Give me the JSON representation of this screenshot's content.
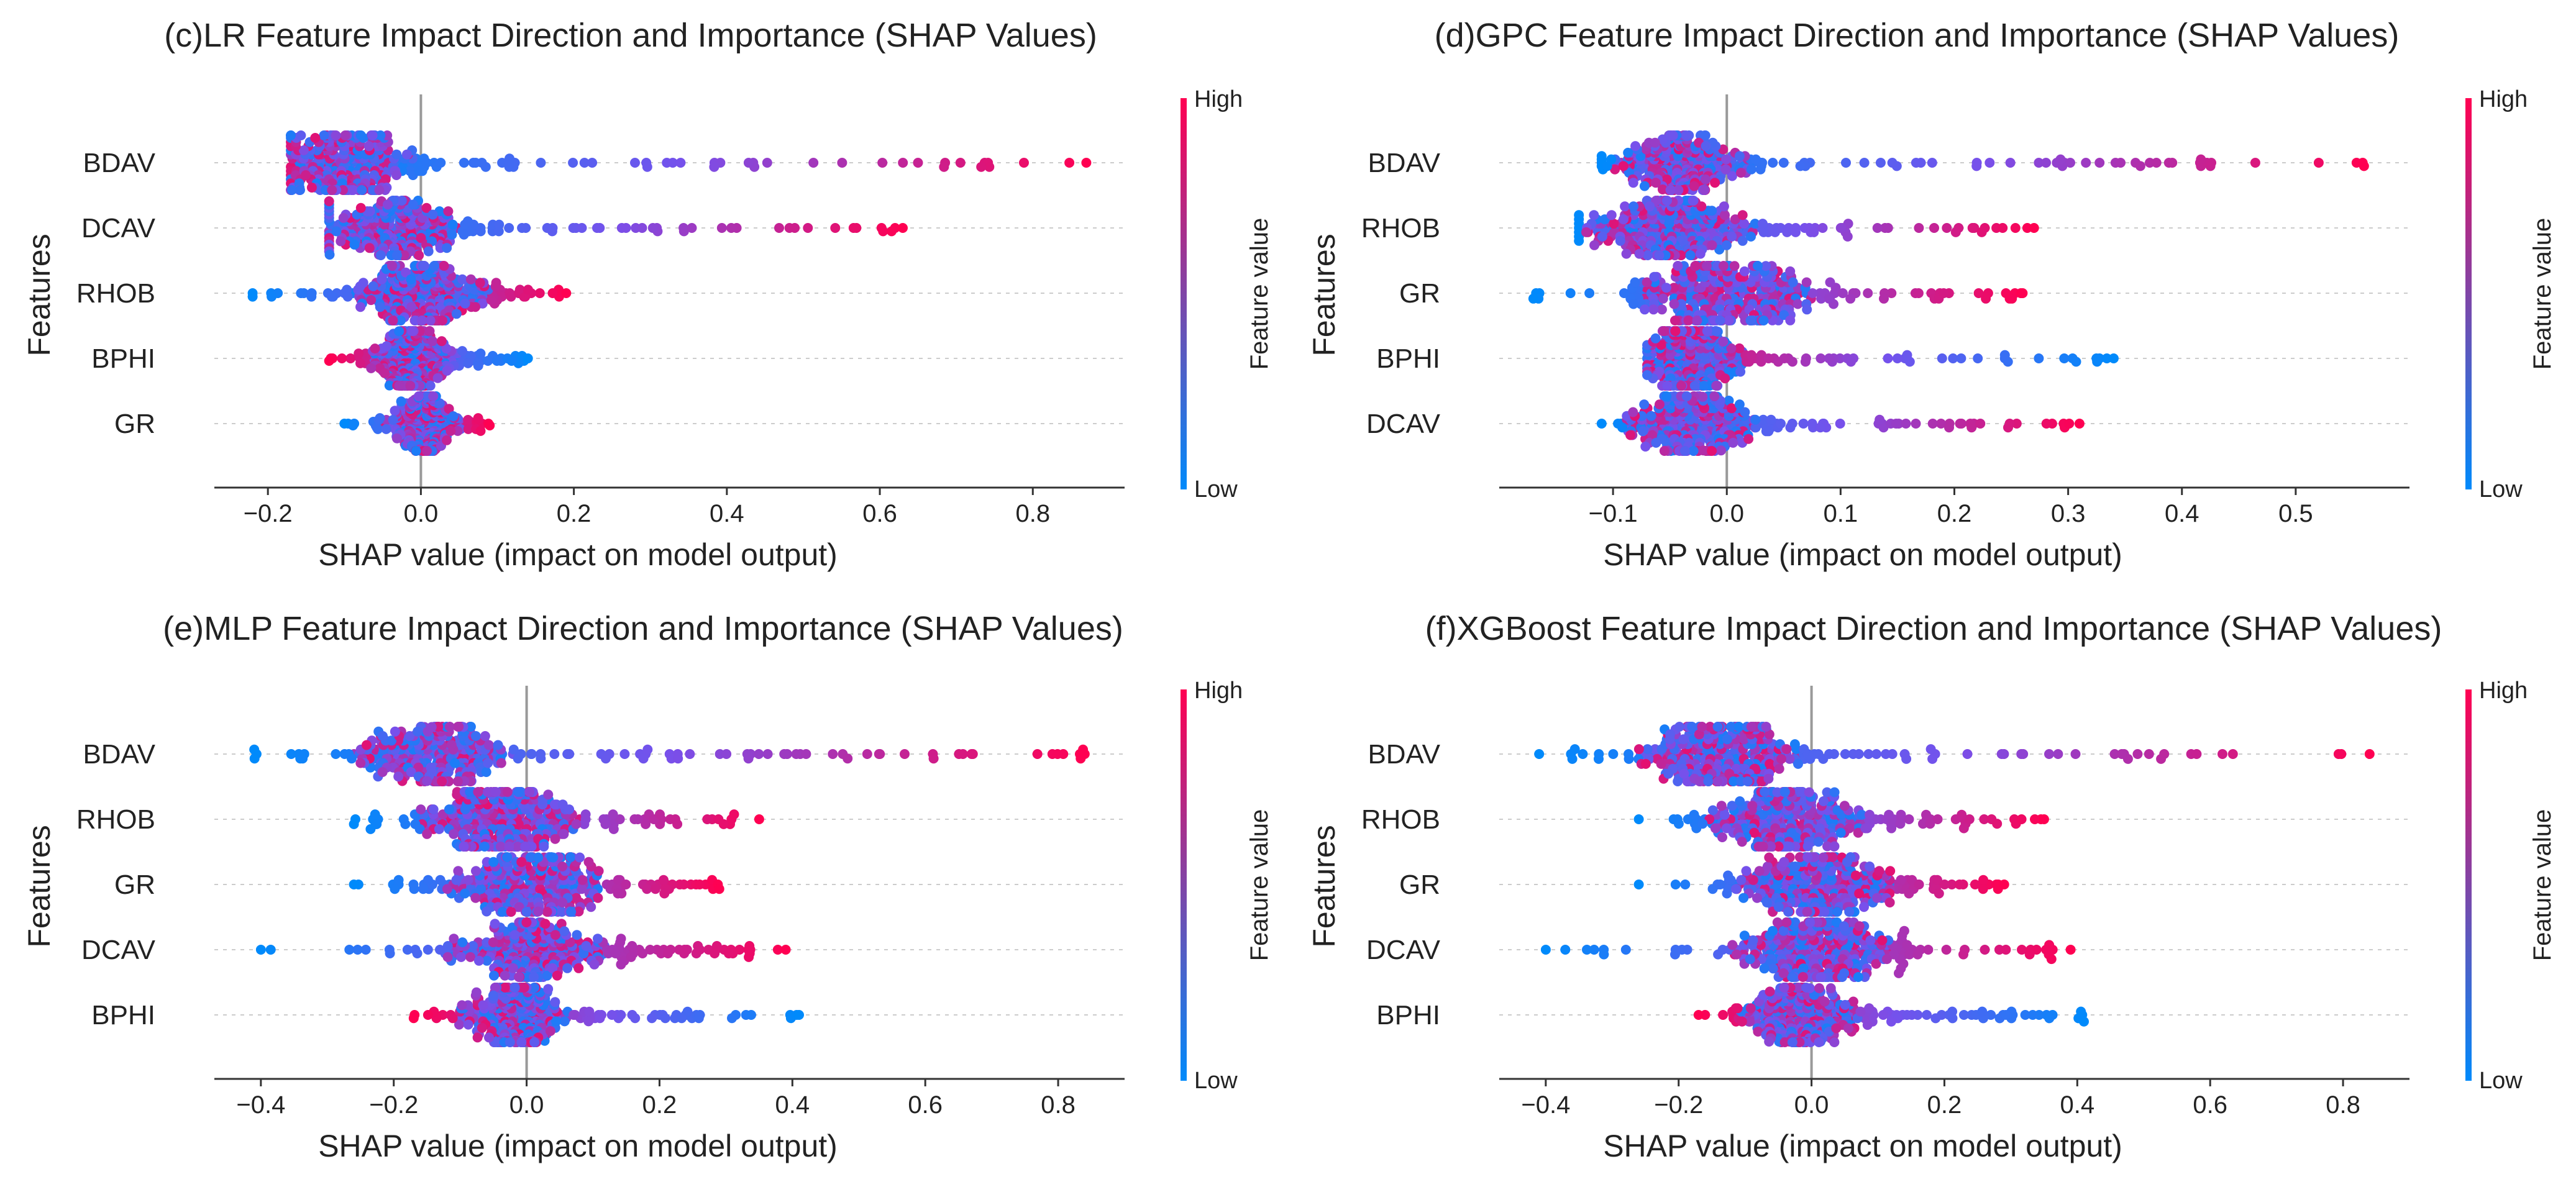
{
  "figure": {
    "colormap": {
      "low": "#008afb",
      "high": "#ff0052"
    },
    "panels": [
      {
        "title": "(c)LR Feature Impact Direction and Importance (SHAP Values)",
        "xlabel": "SHAP value (impact on model output)",
        "ylabel": "Features",
        "colorbar": {
          "high": "High",
          "low": "Low",
          "label": "Feature value"
        }
      },
      {
        "title": "(d)GPC Feature Impact Direction and Importance (SHAP Values)",
        "xlabel": "SHAP value (impact on model output)",
        "ylabel": "Features",
        "colorbar": {
          "high": "High",
          "low": "Low",
          "label": "Feature value"
        }
      },
      {
        "title": "(e)MLP Feature Impact Direction and Importance (SHAP Values)",
        "xlabel": "SHAP value (impact on model output)",
        "ylabel": "Features",
        "colorbar": {
          "high": "High",
          "low": "Low",
          "label": "Feature value"
        }
      },
      {
        "title": "(f)XGBoost Feature Impact Direction and Importance (SHAP Values)",
        "xlabel": "SHAP value (impact on model output)",
        "ylabel": "Features",
        "colorbar": {
          "high": "High",
          "low": "Low",
          "label": "Feature value"
        }
      }
    ]
  },
  "chart_data": [
    {
      "type": "scatter",
      "subtype": "shap-beeswarm",
      "title": "(c)LR Feature Impact Direction and Importance (SHAP Values)",
      "xlabel": "SHAP value (impact on model output)",
      "ylabel": "Features",
      "xlim": [
        -0.27,
        0.92
      ],
      "xticks": [
        -0.2,
        0.0,
        0.2,
        0.4,
        0.6,
        0.8
      ],
      "xtick_labels": [
        "−0.2",
        "0.0",
        "0.2",
        "0.4",
        "0.6",
        "0.8"
      ],
      "grid": false,
      "colorbar": {
        "label": "Feature value",
        "high": "High",
        "low": "Low"
      },
      "features": [
        {
          "name": "BDAV",
          "range": [
            -0.17,
            0.87
          ],
          "mode": -0.1,
          "highSide": 1,
          "spread": 0.06
        },
        {
          "name": "DCAV",
          "range": [
            -0.12,
            0.63
          ],
          "mode": -0.04,
          "highSide": 1,
          "spread": 0.06
        },
        {
          "name": "RHOB",
          "range": [
            -0.22,
            0.19
          ],
          "mode": 0.0,
          "highSide": 1,
          "spread": 0.06
        },
        {
          "name": "BPHI",
          "range": [
            -0.12,
            0.14
          ],
          "mode": -0.01,
          "highSide": -1,
          "spread": 0.04
        },
        {
          "name": "GR",
          "range": [
            -0.1,
            0.09
          ],
          "mode": 0.0,
          "highSide": 1,
          "spread": 0.035
        }
      ]
    },
    {
      "type": "scatter",
      "subtype": "shap-beeswarm",
      "title": "(d)GPC Feature Impact Direction and Importance (SHAP Values)",
      "xlabel": "SHAP value (impact on model output)",
      "ylabel": "Features",
      "xlim": [
        -0.2,
        0.6
      ],
      "xticks": [
        -0.1,
        0.0,
        0.1,
        0.2,
        0.3,
        0.4,
        0.5
      ],
      "xtick_labels": [
        "−0.1",
        "0.0",
        "0.1",
        "0.2",
        "0.3",
        "0.4",
        "0.5"
      ],
      "grid": false,
      "colorbar": {
        "label": "Feature value",
        "high": "High",
        "low": "Low"
      },
      "features": [
        {
          "name": "BDAV",
          "range": [
            -0.11,
            0.56
          ],
          "mode": -0.04,
          "highSide": 1,
          "spread": 0.04
        },
        {
          "name": "RHOB",
          "range": [
            -0.13,
            0.27
          ],
          "mode": -0.05,
          "highSide": 1,
          "spread": 0.05
        },
        {
          "name": "GR",
          "range": [
            -0.17,
            0.26
          ],
          "mode": 0.0,
          "highSide": 1,
          "spread": 0.05
        },
        {
          "name": "BPHI",
          "range": [
            -0.07,
            0.34
          ],
          "mode": -0.03,
          "highSide": -1,
          "spread": 0.03
        },
        {
          "name": "DCAV",
          "range": [
            -0.11,
            0.31
          ],
          "mode": -0.03,
          "highSide": 1,
          "spread": 0.04
        }
      ]
    },
    {
      "type": "scatter",
      "subtype": "shap-beeswarm",
      "title": "(e)MLP Feature Impact Direction and Importance (SHAP Values)",
      "xlabel": "SHAP value (impact on model output)",
      "ylabel": "Features",
      "xlim": [
        -0.47,
        0.9
      ],
      "xticks": [
        -0.4,
        -0.2,
        0.0,
        0.2,
        0.4,
        0.6,
        0.8
      ],
      "xtick_labels": [
        "−0.4",
        "−0.2",
        "0.0",
        "0.2",
        "0.4",
        "0.6",
        "0.8"
      ],
      "grid": false,
      "colorbar": {
        "label": "Feature value",
        "high": "High",
        "low": "Low"
      },
      "features": [
        {
          "name": "BDAV",
          "range": [
            -0.41,
            0.84
          ],
          "mode": -0.14,
          "highSide": 1,
          "spread": 0.08
        },
        {
          "name": "RHOB",
          "range": [
            -0.26,
            0.35
          ],
          "mode": -0.04,
          "highSide": 1,
          "spread": 0.08
        },
        {
          "name": "GR",
          "range": [
            -0.26,
            0.29
          ],
          "mode": 0.0,
          "highSide": 1,
          "spread": 0.08
        },
        {
          "name": "DCAV",
          "range": [
            -0.4,
            0.39
          ],
          "mode": 0.0,
          "highSide": 1,
          "spread": 0.08
        },
        {
          "name": "BPHI",
          "range": [
            -0.17,
            0.41
          ],
          "mode": -0.02,
          "highSide": -1,
          "spread": 0.06
        }
      ]
    },
    {
      "type": "scatter",
      "subtype": "shap-beeswarm",
      "title": "(f)XGBoost Feature Impact Direction and Importance (SHAP Values)",
      "xlabel": "SHAP value (impact on model output)",
      "ylabel": "Features",
      "xlim": [
        -0.47,
        0.9
      ],
      "xticks": [
        -0.4,
        -0.2,
        0.0,
        0.2,
        0.4,
        0.6,
        0.8
      ],
      "xtick_labels": [
        "−0.4",
        "−0.2",
        "0.0",
        "0.2",
        "0.4",
        "0.6",
        "0.8"
      ],
      "grid": false,
      "colorbar": {
        "label": "Feature value",
        "high": "High",
        "low": "Low"
      },
      "features": [
        {
          "name": "BDAV",
          "range": [
            -0.41,
            0.84
          ],
          "mode": -0.14,
          "highSide": 1,
          "spread": 0.08
        },
        {
          "name": "RHOB",
          "range": [
            -0.26,
            0.35
          ],
          "mode": -0.04,
          "highSide": 1,
          "spread": 0.08
        },
        {
          "name": "GR",
          "range": [
            -0.26,
            0.29
          ],
          "mode": 0.0,
          "highSide": 1,
          "spread": 0.08
        },
        {
          "name": "DCAV",
          "range": [
            -0.4,
            0.39
          ],
          "mode": 0.0,
          "highSide": 1,
          "spread": 0.08
        },
        {
          "name": "BPHI",
          "range": [
            -0.17,
            0.41
          ],
          "mode": -0.02,
          "highSide": -1,
          "spread": 0.06
        }
      ]
    }
  ]
}
